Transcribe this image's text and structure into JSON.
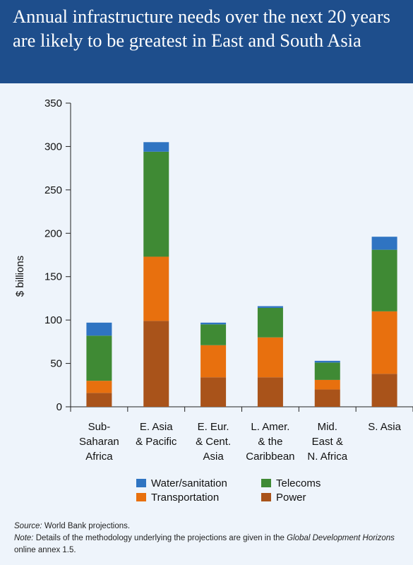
{
  "header": {
    "title": "Annual infrastructure needs over the next 20 years are likely to be greatest in East and South Asia"
  },
  "chart_data": {
    "type": "bar",
    "stacked": true,
    "ylabel": "$ billions",
    "ylim": [
      0,
      350
    ],
    "yticks": [
      0,
      50,
      100,
      150,
      200,
      250,
      300,
      350
    ],
    "categories": [
      [
        "Sub-",
        "Saharan",
        "Africa"
      ],
      [
        "E. Asia",
        "& Pacific"
      ],
      [
        "E. Eur.",
        "& Cent.",
        "Asia"
      ],
      [
        "L. Amer.",
        "& the",
        "Caribbean"
      ],
      [
        "Mid.",
        "East &",
        "N. Africa"
      ],
      [
        "S. Asia"
      ]
    ],
    "series": [
      {
        "name": "Power",
        "color": "#a9531a",
        "values": [
          16,
          99,
          34,
          34,
          20,
          38
        ]
      },
      {
        "name": "Transportation",
        "color": "#e8700e",
        "values": [
          14,
          74,
          37,
          46,
          11,
          72
        ]
      },
      {
        "name": "Telecoms",
        "color": "#3f8a34",
        "values": [
          52,
          121,
          24,
          34,
          20,
          71
        ]
      },
      {
        "name": "Water/sanitation",
        "color": "#2f74c2",
        "values": [
          15,
          11,
          2,
          2,
          2,
          15
        ]
      }
    ],
    "legend": [
      [
        "Water/sanitation",
        "Telecoms"
      ],
      [
        "Transportation",
        "Power"
      ]
    ],
    "grid": false,
    "legend_position": "bottom"
  },
  "footer": {
    "source_label": "Source:",
    "source_text": " World Bank projections.",
    "note_label": "Note:",
    "note_text_1": " Details of the methodology underlying the projections are given in the ",
    "note_italic": "Global Development Horizons",
    "note_text_2": " online annex 1.5."
  }
}
